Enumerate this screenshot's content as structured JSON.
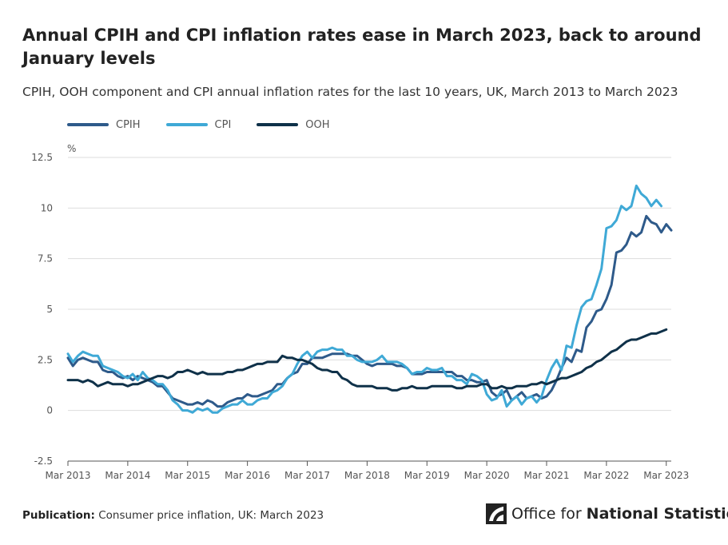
{
  "title": "Annual CPIH and CPI inflation rates ease in March 2023, back to around January levels",
  "subtitle": "CPIH, OOH component and CPI annual inflation rates for the last 10 years, UK, March 2013 to March 2023",
  "footer": {
    "publication_label": "Publication:",
    "publication_value": "Consumer price inflation, UK: March 2023",
    "org_name_part1": "Office for",
    "org_name_part2": "National Statistics"
  },
  "colors": {
    "cpih": "#2e5a8a",
    "cpi": "#3fa9d6",
    "ooh": "#0f3149",
    "grid": "#dddddd",
    "axis": "#555555"
  },
  "chart_data": {
    "type": "line",
    "title": "Annual CPIH and CPI inflation rates ease in March 2023, back to around January levels",
    "ylabel": "%",
    "ylim": [
      -2.5,
      12.5
    ],
    "yticks": [
      -2.5,
      0,
      2.5,
      5,
      7.5,
      10,
      12.5
    ],
    "ytick_labels": [
      "-2.5",
      "0",
      "2.5",
      "5",
      "7.5",
      "10",
      "12.5"
    ],
    "xtick_labels": [
      "Mar 2013",
      "Mar 2014",
      "Mar 2015",
      "Mar 2016",
      "Mar 2017",
      "Mar 2018",
      "Mar 2019",
      "Mar 2020",
      "Mar 2021",
      "Mar 2022",
      "Mar 2023"
    ],
    "xtick_index": [
      0,
      12,
      24,
      36,
      48,
      60,
      72,
      84,
      96,
      108,
      120
    ],
    "x_start": "Mar 2013",
    "x_end": "Mar 2023",
    "frequency": "monthly",
    "series": [
      {
        "name": "CPIH",
        "key": "cpih",
        "values": [
          2.6,
          2.2,
          2.5,
          2.6,
          2.5,
          2.4,
          2.4,
          2.0,
          1.9,
          1.9,
          1.7,
          1.6,
          1.7,
          1.5,
          1.7,
          1.6,
          1.5,
          1.4,
          1.2,
          1.2,
          0.9,
          0.6,
          0.5,
          0.4,
          0.3,
          0.3,
          0.4,
          0.3,
          0.5,
          0.4,
          0.2,
          0.2,
          0.4,
          0.5,
          0.6,
          0.6,
          0.8,
          0.7,
          0.7,
          0.8,
          0.9,
          1.0,
          1.3,
          1.3,
          1.6,
          1.8,
          1.9,
          2.3,
          2.3,
          2.6,
          2.6,
          2.6,
          2.7,
          2.8,
          2.8,
          2.8,
          2.8,
          2.7,
          2.7,
          2.5,
          2.3,
          2.2,
          2.3,
          2.3,
          2.3,
          2.3,
          2.2,
          2.2,
          2.1,
          1.8,
          1.8,
          1.8,
          1.9,
          1.9,
          1.9,
          1.9,
          1.9,
          1.9,
          1.7,
          1.7,
          1.5,
          1.5,
          1.4,
          1.4,
          1.5,
          0.9,
          0.7,
          0.8,
          1.0,
          0.5,
          0.7,
          0.9,
          0.6,
          0.7,
          0.8,
          0.6,
          0.7,
          1.0,
          1.5,
          2.1,
          2.6,
          2.4,
          3.0,
          2.9,
          4.1,
          4.4,
          4.9,
          5.0,
          5.5,
          6.2,
          7.8,
          7.9,
          8.2,
          8.8,
          8.6,
          8.8,
          9.6,
          9.3,
          9.2,
          8.8,
          9.2,
          8.9
        ]
      },
      {
        "name": "CPI",
        "key": "cpi",
        "values": [
          2.8,
          2.4,
          2.7,
          2.9,
          2.8,
          2.7,
          2.7,
          2.2,
          2.1,
          2.0,
          1.9,
          1.7,
          1.6,
          1.8,
          1.5,
          1.9,
          1.6,
          1.5,
          1.3,
          1.3,
          1.0,
          0.5,
          0.3,
          0.0,
          0.0,
          -0.1,
          0.1,
          0.0,
          0.1,
          -0.1,
          -0.1,
          0.1,
          0.2,
          0.3,
          0.3,
          0.5,
          0.3,
          0.3,
          0.5,
          0.6,
          0.6,
          0.9,
          1.0,
          1.2,
          1.6,
          1.8,
          2.3,
          2.7,
          2.9,
          2.6,
          2.9,
          3.0,
          3.0,
          3.1,
          3.0,
          3.0,
          2.7,
          2.7,
          2.5,
          2.4,
          2.4,
          2.4,
          2.5,
          2.7,
          2.4,
          2.4,
          2.4,
          2.3,
          2.1,
          1.8,
          1.9,
          1.9,
          2.1,
          2.0,
          2.0,
          2.1,
          1.7,
          1.7,
          1.5,
          1.5,
          1.3,
          1.8,
          1.7,
          1.5,
          0.8,
          0.5,
          0.6,
          1.0,
          0.2,
          0.5,
          0.7,
          0.3,
          0.6,
          0.7,
          0.4,
          0.7,
          1.5,
          2.1,
          2.5,
          2.0,
          3.2,
          3.1,
          4.2,
          5.1,
          5.4,
          5.5,
          6.2,
          7.0,
          9.0,
          9.1,
          9.4,
          10.1,
          9.9,
          10.1,
          11.1,
          10.7,
          10.5,
          10.1,
          10.4,
          10.1
        ]
      },
      {
        "name": "OOH",
        "key": "ooh",
        "values": [
          1.5,
          1.5,
          1.5,
          1.4,
          1.5,
          1.4,
          1.2,
          1.3,
          1.4,
          1.3,
          1.3,
          1.3,
          1.2,
          1.3,
          1.3,
          1.4,
          1.5,
          1.6,
          1.7,
          1.7,
          1.6,
          1.7,
          1.9,
          1.9,
          2.0,
          1.9,
          1.8,
          1.9,
          1.8,
          1.8,
          1.8,
          1.8,
          1.9,
          1.9,
          2.0,
          2.0,
          2.1,
          2.2,
          2.3,
          2.3,
          2.4,
          2.4,
          2.4,
          2.7,
          2.6,
          2.6,
          2.5,
          2.5,
          2.4,
          2.3,
          2.1,
          2.0,
          2.0,
          1.9,
          1.9,
          1.6,
          1.5,
          1.3,
          1.2,
          1.2,
          1.2,
          1.2,
          1.1,
          1.1,
          1.1,
          1.0,
          1.0,
          1.1,
          1.1,
          1.2,
          1.1,
          1.1,
          1.1,
          1.2,
          1.2,
          1.2,
          1.2,
          1.2,
          1.1,
          1.1,
          1.2,
          1.2,
          1.2,
          1.3,
          1.3,
          1.1,
          1.1,
          1.2,
          1.1,
          1.1,
          1.2,
          1.2,
          1.2,
          1.3,
          1.3,
          1.4,
          1.3,
          1.4,
          1.5,
          1.6,
          1.6,
          1.7,
          1.8,
          1.9,
          2.1,
          2.2,
          2.4,
          2.5,
          2.7,
          2.9,
          3.0,
          3.2,
          3.4,
          3.5,
          3.5,
          3.6,
          3.7,
          3.8,
          3.8,
          3.9,
          4.0
        ]
      }
    ]
  }
}
